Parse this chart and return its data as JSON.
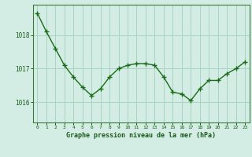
{
  "x": [
    0,
    1,
    2,
    3,
    4,
    5,
    6,
    7,
    8,
    9,
    10,
    11,
    12,
    13,
    14,
    15,
    16,
    17,
    18,
    19,
    20,
    21,
    22,
    23
  ],
  "y": [
    1018.65,
    1018.1,
    1017.6,
    1017.1,
    1016.75,
    1016.45,
    1016.2,
    1016.4,
    1016.75,
    1017.0,
    1017.1,
    1017.15,
    1017.15,
    1017.1,
    1016.75,
    1016.3,
    1016.25,
    1016.05,
    1016.4,
    1016.65,
    1016.65,
    1016.85,
    1017.0,
    1017.2
  ],
  "line_color": "#1a6b1a",
  "marker": "+",
  "background_color": "#d4ede4",
  "grid_color": "#a8d4c4",
  "axis_color": "#3a7a3a",
  "tick_color": "#1a5a1a",
  "label_color": "#1a5a1a",
  "title": "Graphe pression niveau de la mer (hPa)",
  "ylim": [
    1015.4,
    1018.9
  ],
  "yticks": [
    1016,
    1017,
    1018
  ],
  "xticks": [
    0,
    1,
    2,
    3,
    4,
    5,
    6,
    7,
    8,
    9,
    10,
    11,
    12,
    13,
    14,
    15,
    16,
    17,
    18,
    19,
    20,
    21,
    22,
    23
  ]
}
